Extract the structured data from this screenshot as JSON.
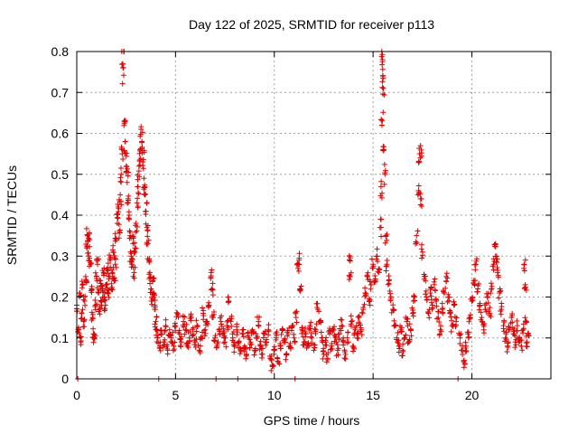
{
  "chart_data": {
    "type": "scatter",
    "title": "Day 122 of 2025, SRMTID for receiver p113",
    "xlabel": "GPS time / hours",
    "ylabel": "SRMTID / TECUs",
    "xlim": [
      0,
      24
    ],
    "ylim": [
      0,
      0.8
    ],
    "xticks": [
      0,
      5,
      10,
      15,
      20
    ],
    "xtick_labels": [
      "0",
      "5",
      "10",
      "15",
      "20"
    ],
    "yticks": [
      0,
      0.1,
      0.2,
      0.3,
      0.4,
      0.5,
      0.6,
      0.7,
      0.8
    ],
    "ytick_labels": [
      "0",
      "0.1",
      "0.2",
      "0.3",
      "0.4",
      "0.5",
      "0.6",
      "0.7",
      "0.8"
    ],
    "grid": true,
    "marker": "+",
    "color": "#e00000",
    "series": [
      {
        "name": "SRMTID",
        "points": [
          [
            0.0,
            0.18
          ],
          [
            0.05,
            0.0
          ],
          [
            0.1,
            0.12
          ],
          [
            0.15,
            0.21
          ],
          [
            0.2,
            0.09
          ],
          [
            0.25,
            0.16
          ],
          [
            0.3,
            0.23
          ],
          [
            0.35,
            0.14
          ],
          [
            0.4,
            0.19
          ],
          [
            0.45,
            0.25
          ],
          [
            0.5,
            0.32
          ],
          [
            0.55,
            0.35
          ],
          [
            0.6,
            0.3
          ],
          [
            0.65,
            0.34
          ],
          [
            0.7,
            0.28
          ],
          [
            0.75,
            0.22
          ],
          [
            0.8,
            0.15
          ],
          [
            0.85,
            0.11
          ],
          [
            0.9,
            0.1
          ],
          [
            0.95,
            0.18
          ],
          [
            1.0,
            0.25
          ],
          [
            1.05,
            0.28
          ],
          [
            1.1,
            0.21
          ],
          [
            1.15,
            0.17
          ],
          [
            1.2,
            0.24
          ],
          [
            1.25,
            0.19
          ],
          [
            1.3,
            0.22
          ],
          [
            1.35,
            0.26
          ],
          [
            1.4,
            0.2
          ],
          [
            1.45,
            0.18
          ],
          [
            1.5,
            0.23
          ],
          [
            1.55,
            0.27
          ],
          [
            1.6,
            0.21
          ],
          [
            1.65,
            0.25
          ],
          [
            1.7,
            0.29
          ],
          [
            1.75,
            0.22
          ],
          [
            1.8,
            0.26
          ],
          [
            1.85,
            0.31
          ],
          [
            1.9,
            0.24
          ],
          [
            1.95,
            0.28
          ],
          [
            2.0,
            0.34
          ],
          [
            2.05,
            0.38
          ],
          [
            2.1,
            0.42
          ],
          [
            2.15,
            0.36
          ],
          [
            2.2,
            0.45
          ],
          [
            2.25,
            0.5
          ],
          [
            2.3,
            0.55
          ],
          [
            2.33,
            0.77
          ],
          [
            2.36,
            0.76
          ],
          [
            2.4,
            0.63
          ],
          [
            2.45,
            0.58
          ],
          [
            2.5,
            0.52
          ],
          [
            2.55,
            0.48
          ],
          [
            2.6,
            0.44
          ],
          [
            2.65,
            0.4
          ],
          [
            2.7,
            0.35
          ],
          [
            2.75,
            0.3
          ],
          [
            2.8,
            0.28
          ],
          [
            2.85,
            0.33
          ],
          [
            2.9,
            0.26
          ],
          [
            2.95,
            0.32
          ],
          [
            3.0,
            0.38
          ],
          [
            3.05,
            0.43
          ],
          [
            3.1,
            0.47
          ],
          [
            3.15,
            0.52
          ],
          [
            3.2,
            0.56
          ],
          [
            3.25,
            0.61
          ],
          [
            3.3,
            0.58
          ],
          [
            3.35,
            0.53
          ],
          [
            3.4,
            0.49
          ],
          [
            3.45,
            0.45
          ],
          [
            3.5,
            0.41
          ],
          [
            3.55,
            0.37
          ],
          [
            3.6,
            0.33
          ],
          [
            3.65,
            0.29
          ],
          [
            3.7,
            0.26
          ],
          [
            3.75,
            0.22
          ],
          [
            3.8,
            0.19
          ],
          [
            3.85,
            0.24
          ],
          [
            3.9,
            0.21
          ],
          [
            3.95,
            0.18
          ],
          [
            4.0,
            0.14
          ],
          [
            4.05,
            0.12
          ],
          [
            4.1,
            0.1
          ],
          [
            4.15,
            0.0
          ],
          [
            4.2,
            0.08
          ],
          [
            4.3,
            0.11
          ],
          [
            4.4,
            0.09
          ],
          [
            4.5,
            0.13
          ],
          [
            4.6,
            0.07
          ],
          [
            4.7,
            0.12
          ],
          [
            4.8,
            0.1
          ],
          [
            4.9,
            0.08
          ],
          [
            5.0,
            0.13
          ],
          [
            5.1,
            0.16
          ],
          [
            5.2,
            0.11
          ],
          [
            5.3,
            0.09
          ],
          [
            5.4,
            0.14
          ],
          [
            5.5,
            0.12
          ],
          [
            5.6,
            0.08
          ],
          [
            5.7,
            0.1
          ],
          [
            5.8,
            0.15
          ],
          [
            5.9,
            0.11
          ],
          [
            6.0,
            0.09
          ],
          [
            6.1,
            0.13
          ],
          [
            6.2,
            0.07
          ],
          [
            6.3,
            0.1
          ],
          [
            6.4,
            0.16
          ],
          [
            6.5,
            0.12
          ],
          [
            6.6,
            0.14
          ],
          [
            6.7,
            0.18
          ],
          [
            6.8,
            0.26
          ],
          [
            6.85,
            0.22
          ],
          [
            6.9,
            0.15
          ],
          [
            7.0,
            0.1
          ],
          [
            7.05,
            0.0
          ],
          [
            7.1,
            0.08
          ],
          [
            7.2,
            0.12
          ],
          [
            7.3,
            0.14
          ],
          [
            7.4,
            0.11
          ],
          [
            7.5,
            0.09
          ],
          [
            7.6,
            0.13
          ],
          [
            7.7,
            0.19
          ],
          [
            7.8,
            0.14
          ],
          [
            7.9,
            0.1
          ],
          [
            8.0,
            0.08
          ],
          [
            8.1,
            0.12
          ],
          [
            8.15,
            0.0
          ],
          [
            8.2,
            0.09
          ],
          [
            8.3,
            0.07
          ],
          [
            8.4,
            0.11
          ],
          [
            8.5,
            0.08
          ],
          [
            8.6,
            0.06
          ],
          [
            8.7,
            0.1
          ],
          [
            8.8,
            0.09
          ],
          [
            8.9,
            0.12
          ],
          [
            9.0,
            0.07
          ],
          [
            9.1,
            0.1
          ],
          [
            9.2,
            0.14
          ],
          [
            9.3,
            0.08
          ],
          [
            9.4,
            0.06
          ],
          [
            9.5,
            0.11
          ],
          [
            9.6,
            0.09
          ],
          [
            9.7,
            0.12
          ],
          [
            9.8,
            0.05
          ],
          [
            9.9,
            0.03
          ],
          [
            10.0,
            0.07
          ],
          [
            10.1,
            0.1
          ],
          [
            10.2,
            0.04
          ],
          [
            10.3,
            0.08
          ],
          [
            10.4,
            0.12
          ],
          [
            10.5,
            0.09
          ],
          [
            10.6,
            0.06
          ],
          [
            10.7,
            0.11
          ],
          [
            10.8,
            0.08
          ],
          [
            10.9,
            0.13
          ],
          [
            11.0,
            0.1
          ],
          [
            11.05,
            0.0
          ],
          [
            11.1,
            0.15
          ],
          [
            11.2,
            0.27
          ],
          [
            11.25,
            0.29
          ],
          [
            11.3,
            0.22
          ],
          [
            11.4,
            0.12
          ],
          [
            11.5,
            0.09
          ],
          [
            11.6,
            0.11
          ],
          [
            11.7,
            0.08
          ],
          [
            11.8,
            0.13
          ],
          [
            11.9,
            0.1
          ],
          [
            12.0,
            0.07
          ],
          [
            12.1,
            0.12
          ],
          [
            12.2,
            0.17
          ],
          [
            12.3,
            0.14
          ],
          [
            12.4,
            0.1
          ],
          [
            12.5,
            0.06
          ],
          [
            12.6,
            0.09
          ],
          [
            12.7,
            0.05
          ],
          [
            12.8,
            0.11
          ],
          [
            12.9,
            0.08
          ],
          [
            13.0,
            0.12
          ],
          [
            13.1,
            0.1
          ],
          [
            13.2,
            0.07
          ],
          [
            13.3,
            0.11
          ],
          [
            13.4,
            0.13
          ],
          [
            13.5,
            0.09
          ],
          [
            13.6,
            0.06
          ],
          [
            13.7,
            0.1
          ],
          [
            13.8,
            0.3
          ],
          [
            13.85,
            0.25
          ],
          [
            13.9,
            0.14
          ],
          [
            14.0,
            0.08
          ],
          [
            14.1,
            0.12
          ],
          [
            14.2,
            0.1
          ],
          [
            14.3,
            0.15
          ],
          [
            14.4,
            0.12
          ],
          [
            14.5,
            0.17
          ],
          [
            14.6,
            0.21
          ],
          [
            14.7,
            0.25
          ],
          [
            14.8,
            0.19
          ],
          [
            14.9,
            0.23
          ],
          [
            15.0,
            0.28
          ],
          [
            15.1,
            0.24
          ],
          [
            15.2,
            0.3
          ],
          [
            15.3,
            0.26
          ],
          [
            15.35,
            0.37
          ],
          [
            15.4,
            0.47
          ],
          [
            15.45,
            0.62
          ],
          [
            15.48,
            0.78
          ],
          [
            15.5,
            0.74
          ],
          [
            15.52,
            0.71
          ],
          [
            15.55,
            0.56
          ],
          [
            15.6,
            0.5
          ],
          [
            15.65,
            0.35
          ],
          [
            15.7,
            0.28
          ],
          [
            15.8,
            0.24
          ],
          [
            15.9,
            0.2
          ],
          [
            16.0,
            0.17
          ],
          [
            16.1,
            0.13
          ],
          [
            16.2,
            0.1
          ],
          [
            16.3,
            0.08
          ],
          [
            16.4,
            0.12
          ],
          [
            16.5,
            0.07
          ],
          [
            16.6,
            0.1
          ],
          [
            16.7,
            0.14
          ],
          [
            16.8,
            0.09
          ],
          [
            16.9,
            0.12
          ],
          [
            17.0,
            0.16
          ],
          [
            17.1,
            0.2
          ],
          [
            17.2,
            0.35
          ],
          [
            17.3,
            0.46
          ],
          [
            17.35,
            0.55
          ],
          [
            17.4,
            0.57
          ],
          [
            17.45,
            0.44
          ],
          [
            17.5,
            0.31
          ],
          [
            17.6,
            0.25
          ],
          [
            17.7,
            0.2
          ],
          [
            17.8,
            0.16
          ],
          [
            17.9,
            0.21
          ],
          [
            18.0,
            0.18
          ],
          [
            18.1,
            0.23
          ],
          [
            18.2,
            0.19
          ],
          [
            18.3,
            0.15
          ],
          [
            18.4,
            0.12
          ],
          [
            18.5,
            0.17
          ],
          [
            18.6,
            0.21
          ],
          [
            18.7,
            0.25
          ],
          [
            18.8,
            0.2
          ],
          [
            18.9,
            0.16
          ],
          [
            19.0,
            0.13
          ],
          [
            19.1,
            0.18
          ],
          [
            19.2,
            0.14
          ],
          [
            19.3,
            0.0
          ],
          [
            19.4,
            0.1
          ],
          [
            19.5,
            0.07
          ],
          [
            19.6,
            0.04
          ],
          [
            19.7,
            0.08
          ],
          [
            19.8,
            0.11
          ],
          [
            19.9,
            0.15
          ],
          [
            20.0,
            0.19
          ],
          [
            20.1,
            0.24
          ],
          [
            20.2,
            0.28
          ],
          [
            20.3,
            0.22
          ],
          [
            20.4,
            0.18
          ],
          [
            20.5,
            0.15
          ],
          [
            20.6,
            0.12
          ],
          [
            20.7,
            0.17
          ],
          [
            20.8,
            0.2
          ],
          [
            20.9,
            0.16
          ],
          [
            21.0,
            0.22
          ],
          [
            21.1,
            0.28
          ],
          [
            21.2,
            0.33
          ],
          [
            21.25,
            0.3
          ],
          [
            21.3,
            0.26
          ],
          [
            21.4,
            0.21
          ],
          [
            21.5,
            0.17
          ],
          [
            21.6,
            0.13
          ],
          [
            21.7,
            0.1
          ],
          [
            21.8,
            0.08
          ],
          [
            21.9,
            0.12
          ],
          [
            22.0,
            0.15
          ],
          [
            22.1,
            0.11
          ],
          [
            22.2,
            0.09
          ],
          [
            22.3,
            0.13
          ],
          [
            22.4,
            0.1
          ],
          [
            22.5,
            0.08
          ],
          [
            22.6,
            0.12
          ],
          [
            22.65,
            0.28
          ],
          [
            22.7,
            0.23
          ],
          [
            22.75,
            0.14
          ],
          [
            22.8,
            0.09
          ],
          [
            22.85,
            0.11
          ]
        ]
      }
    ]
  }
}
